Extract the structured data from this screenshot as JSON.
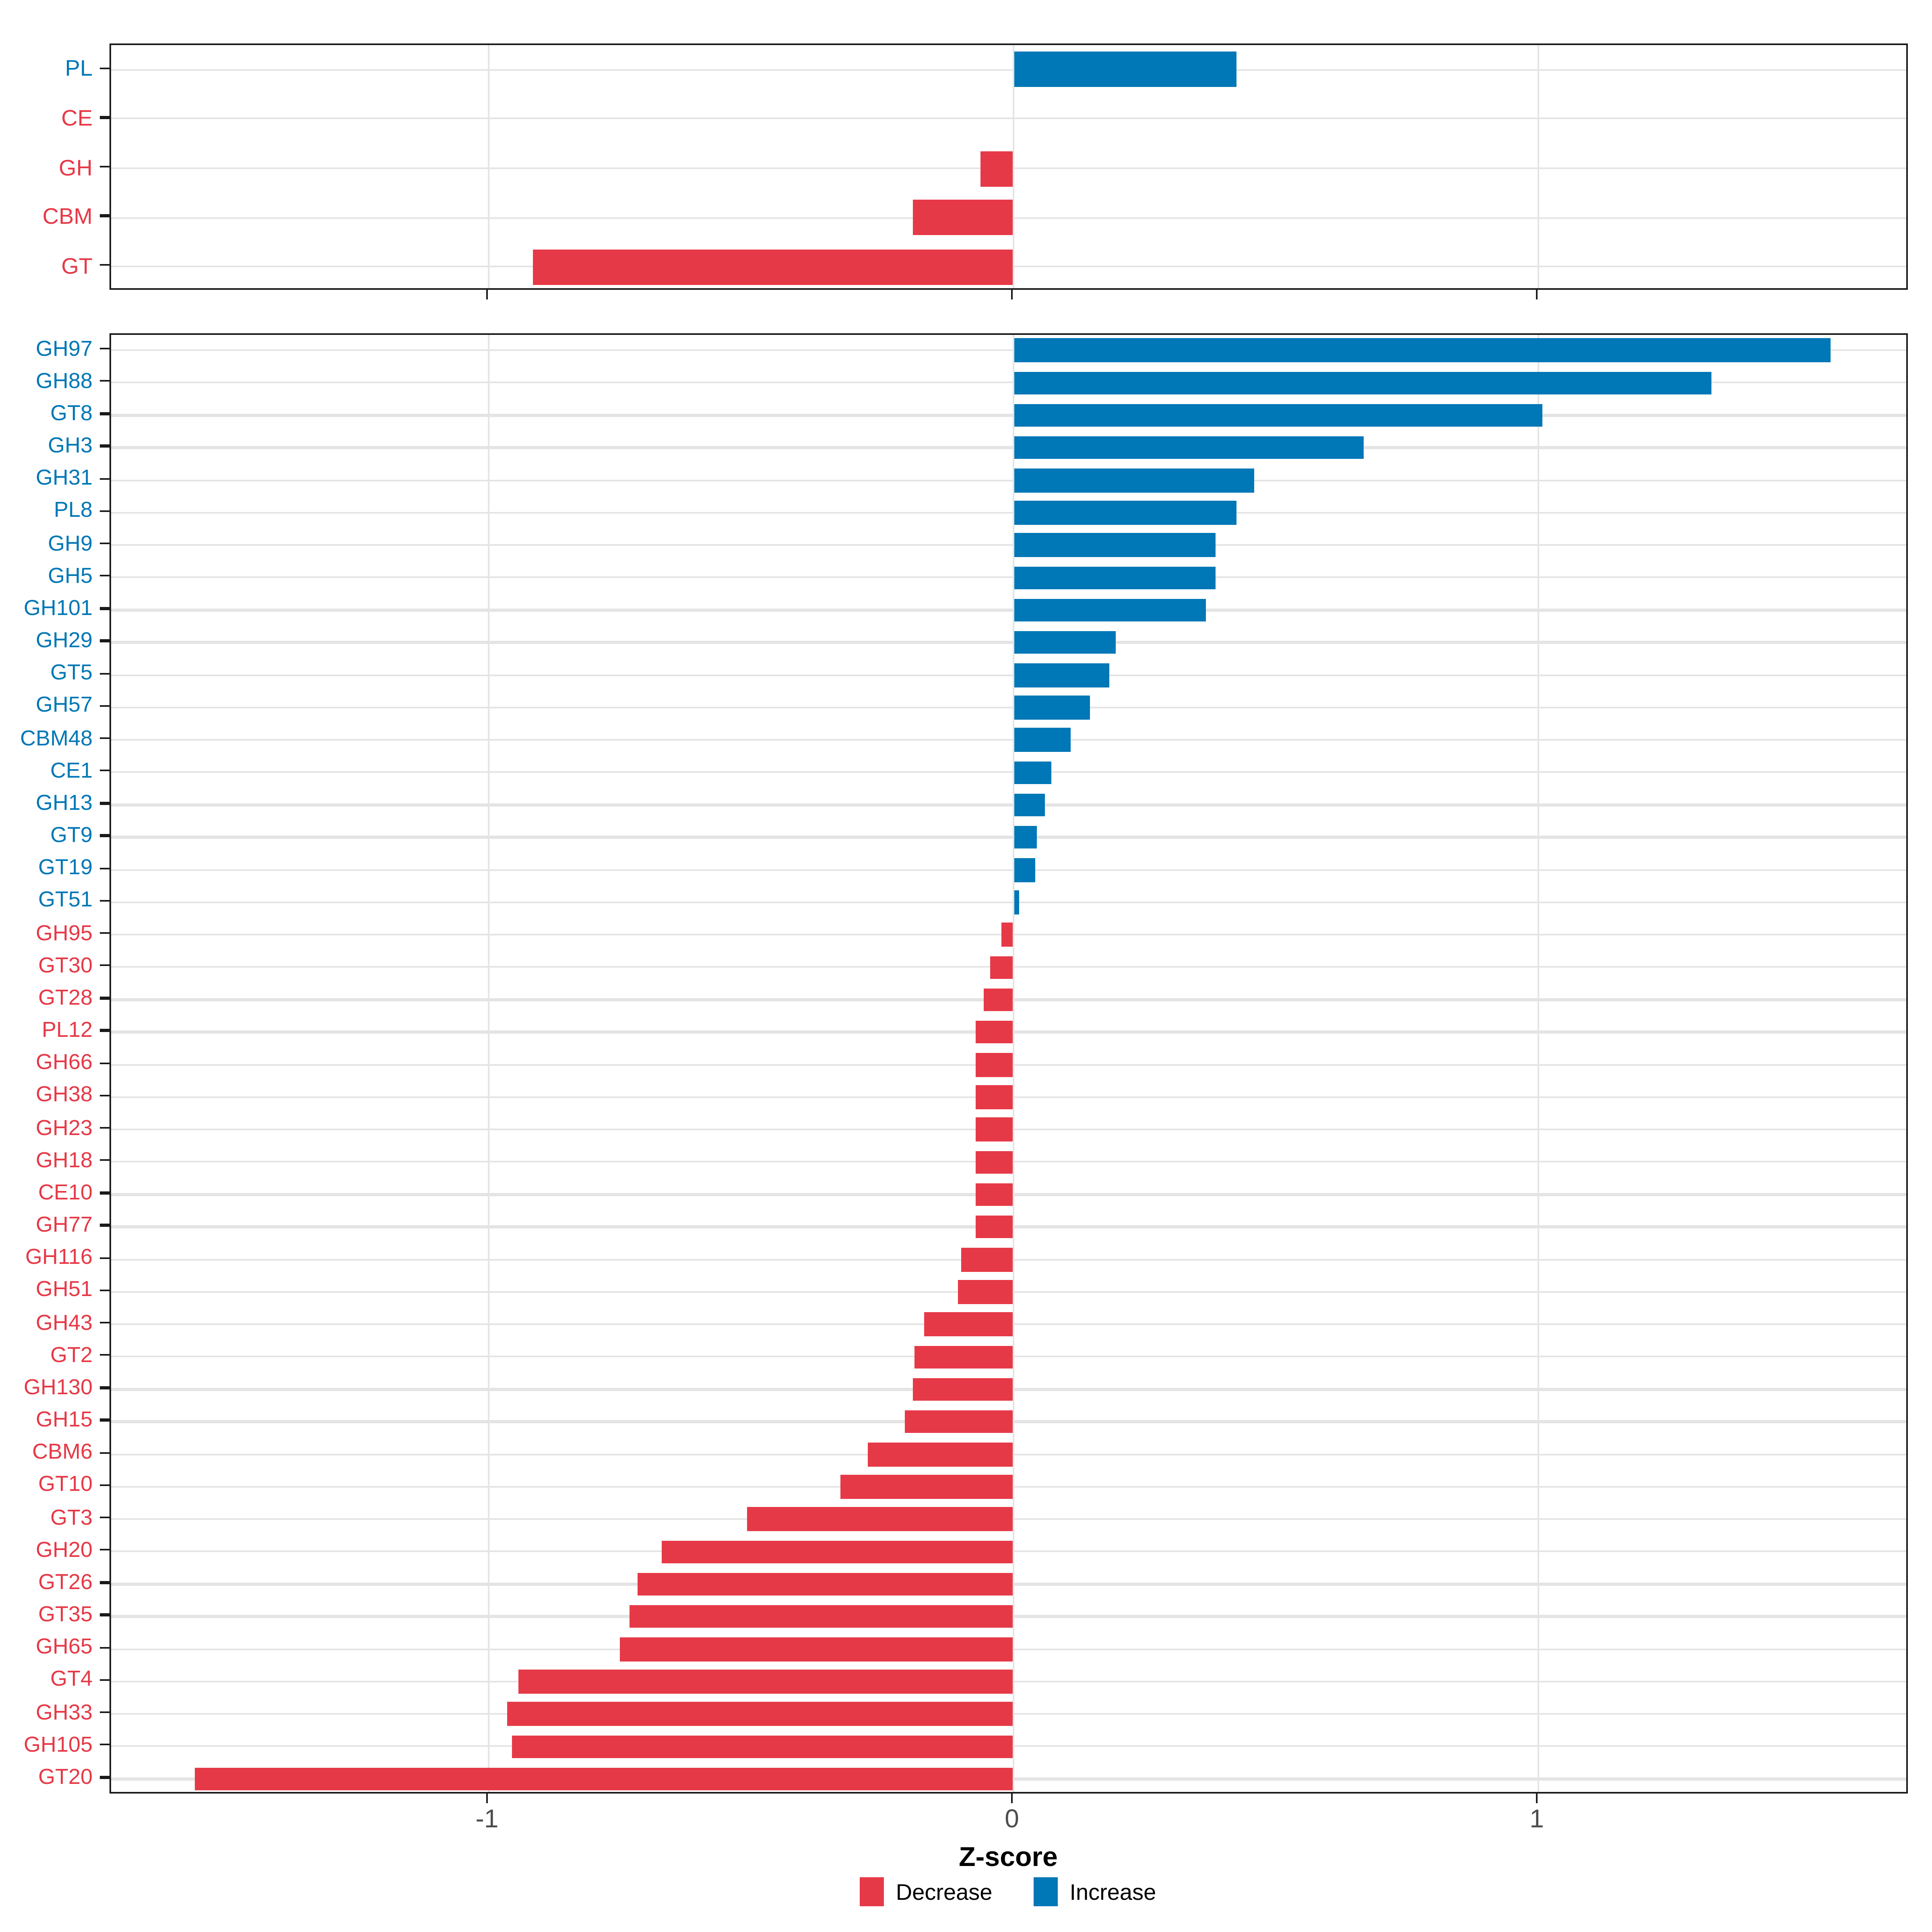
{
  "axis": {
    "xlabel": "Z-score",
    "tick_labels": [
      "-1",
      "0",
      "1"
    ]
  },
  "legend": {
    "decrease": "Decrease",
    "increase": "Increase"
  },
  "colors": {
    "decrease": "#E63947",
    "increase": "#0077B6",
    "gridline": "#E4E4E4",
    "axis_text": "#4D4D4D",
    "panel_border": "#1A1A1A",
    "tick_mark": "#1A1A1A"
  },
  "chart_data": {
    "type": "bar",
    "orientation": "horizontal",
    "title": "",
    "xlabel": "Z-score",
    "ylabel": "",
    "x_ticks": [
      -1,
      0,
      1
    ],
    "x_tick_labels": [
      "-1",
      "0",
      "1"
    ],
    "xlim": [
      -1.72,
      1.71
    ],
    "grid": true,
    "legend_position": "bottom",
    "legend_entries": [
      {
        "label": "Decrease",
        "color": "#E63947"
      },
      {
        "label": "Increase",
        "color": "#0077B6"
      }
    ],
    "panels": [
      {
        "name": "cazyme-classes",
        "categories": [
          "PL",
          "CE",
          "GH",
          "CBM",
          "GT"
        ],
        "values": [
          0.424,
          0.0,
          -0.064,
          -0.193,
          -0.916
        ],
        "directions": [
          "increase",
          "decrease",
          "decrease",
          "decrease",
          "decrease"
        ]
      },
      {
        "name": "cazyme-families",
        "categories": [
          "GH97",
          "GH88",
          "GT8",
          "GH3",
          "GH31",
          "PL8",
          "GH9",
          "GH5",
          "GH101",
          "GH29",
          "GT5",
          "GH57",
          "CBM48",
          "CE1",
          "GH13",
          "GT9",
          "GT19",
          "GT51",
          "GH95",
          "GT30",
          "GT28",
          "PL12",
          "GH66",
          "GH38",
          "GH23",
          "GH18",
          "CE10",
          "GH77",
          "GH116",
          "GH51",
          "GH43",
          "GT2",
          "GH130",
          "GH15",
          "CBM6",
          "GT10",
          "GT3",
          "GH20",
          "GT26",
          "GT35",
          "GH65",
          "GT4",
          "GH33",
          "GH105",
          "GT20"
        ],
        "values": [
          1.556,
          1.331,
          1.009,
          0.668,
          0.46,
          0.424,
          0.386,
          0.386,
          0.367,
          0.196,
          0.183,
          0.145,
          0.109,
          0.073,
          0.061,
          0.046,
          0.042,
          0.012,
          -0.022,
          -0.045,
          -0.058,
          -0.072,
          -0.072,
          -0.072,
          -0.072,
          -0.072,
          -0.072,
          -0.072,
          -0.099,
          -0.107,
          -0.171,
          -0.19,
          -0.191,
          -0.206,
          -0.277,
          -0.331,
          -0.508,
          -0.671,
          -0.717,
          -0.732,
          -0.751,
          -0.943,
          -0.965,
          -0.955,
          -1.561
        ],
        "directions": [
          "increase",
          "increase",
          "increase",
          "increase",
          "increase",
          "increase",
          "increase",
          "increase",
          "increase",
          "increase",
          "increase",
          "increase",
          "increase",
          "increase",
          "increase",
          "increase",
          "increase",
          "increase",
          "decrease",
          "decrease",
          "decrease",
          "decrease",
          "decrease",
          "decrease",
          "decrease",
          "decrease",
          "decrease",
          "decrease",
          "decrease",
          "decrease",
          "decrease",
          "decrease",
          "decrease",
          "decrease",
          "decrease",
          "decrease",
          "decrease",
          "decrease",
          "decrease",
          "decrease",
          "decrease",
          "decrease",
          "decrease",
          "decrease",
          "decrease"
        ]
      }
    ]
  }
}
